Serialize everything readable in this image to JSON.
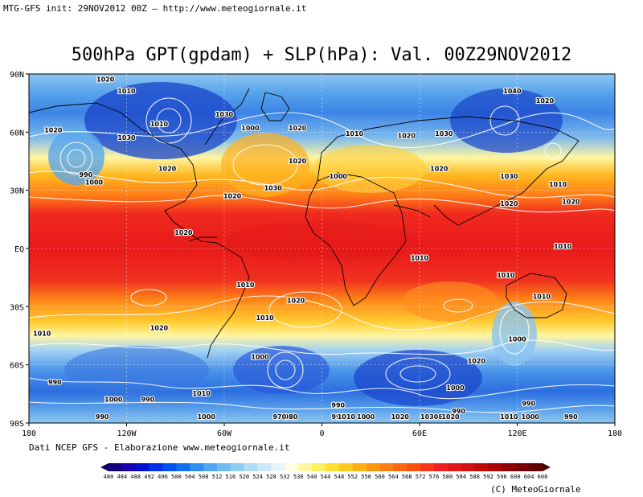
{
  "header": {
    "init_line": "MTG-GFS init: 29NOV2012 00Z — http://www.meteogiornale.it"
  },
  "title": "500hPa GPT(gpdam) + SLP(hPa): Val. 00Z29NOV2012",
  "map": {
    "lat_labels": [
      "90N",
      "60N",
      "30N",
      "EQ",
      "30S",
      "60S",
      "90S"
    ],
    "lon_labels": [
      "180",
      "120W",
      "60W",
      "0",
      "60E",
      "120E",
      "180"
    ],
    "pressure_labels": [
      {
        "t": "1020",
        "lon": -133,
        "lat": 86
      },
      {
        "t": "1010",
        "lon": -120,
        "lat": 80
      },
      {
        "t": "1020",
        "lon": -165,
        "lat": 60
      },
      {
        "t": "1030",
        "lon": -60,
        "lat": 68
      },
      {
        "t": "1010",
        "lon": -100,
        "lat": 63
      },
      {
        "t": "1000",
        "lon": -44,
        "lat": 61
      },
      {
        "t": "1020",
        "lon": -15,
        "lat": 61
      },
      {
        "t": "1030",
        "lon": -120,
        "lat": 56
      },
      {
        "t": "1020",
        "lon": -95,
        "lat": 40
      },
      {
        "t": "1020",
        "lon": -15,
        "lat": 44
      },
      {
        "t": "990",
        "lon": -145,
        "lat": 37
      },
      {
        "t": "1000",
        "lon": -140,
        "lat": 33
      },
      {
        "t": "1030",
        "lon": -30,
        "lat": 30
      },
      {
        "t": "1020",
        "lon": -55,
        "lat": 26
      },
      {
        "t": "1000",
        "lon": 10,
        "lat": 36
      },
      {
        "t": "1020",
        "lon": -85,
        "lat": 7
      },
      {
        "t": "1010",
        "lon": 20,
        "lat": 58
      },
      {
        "t": "1020",
        "lon": 52,
        "lat": 57
      },
      {
        "t": "1030",
        "lon": 75,
        "lat": 58
      },
      {
        "t": "1020",
        "lon": 72,
        "lat": 40
      },
      {
        "t": "1040",
        "lon": 117,
        "lat": 80
      },
      {
        "t": "1020",
        "lon": 137,
        "lat": 75
      },
      {
        "t": "1030",
        "lon": 115,
        "lat": 36
      },
      {
        "t": "1010",
        "lon": 145,
        "lat": 32
      },
      {
        "t": "1020",
        "lon": 115,
        "lat": 22
      },
      {
        "t": "1020",
        "lon": 153,
        "lat": 23
      },
      {
        "t": "1010",
        "lon": 60,
        "lat": -6
      },
      {
        "t": "1010",
        "lon": 148,
        "lat": 0
      },
      {
        "t": "1010",
        "lon": -47,
        "lat": -20
      },
      {
        "t": "1010",
        "lon": 113,
        "lat": -15
      },
      {
        "t": "1010",
        "lon": 135,
        "lat": -26
      },
      {
        "t": "1020",
        "lon": -16,
        "lat": -28
      },
      {
        "t": "1020",
        "lon": -100,
        "lat": -42
      },
      {
        "t": "1010",
        "lon": -35,
        "lat": -37
      },
      {
        "t": "1010",
        "lon": -172,
        "lat": -45
      },
      {
        "t": "1000",
        "lon": 120,
        "lat": -48
      },
      {
        "t": "1000",
        "lon": -38,
        "lat": -57
      },
      {
        "t": "1020",
        "lon": 95,
        "lat": -59
      },
      {
        "t": "1000",
        "lon": 82,
        "lat": -73
      },
      {
        "t": "990",
        "lon": -164,
        "lat": -70
      },
      {
        "t": "1000",
        "lon": -128,
        "lat": -79
      },
      {
        "t": "990",
        "lon": -107,
        "lat": -79
      },
      {
        "t": "1010",
        "lon": -74,
        "lat": -76
      },
      {
        "t": "990",
        "lon": 10,
        "lat": -82
      },
      {
        "t": "980",
        "lon": -19,
        "lat": -92
      },
      {
        "t": "970",
        "lon": -26,
        "lat": -88
      },
      {
        "t": "990",
        "lon": 84,
        "lat": -85
      },
      {
        "t": "980",
        "lon": 73,
        "lat": -94
      },
      {
        "t": "990",
        "lon": 127,
        "lat": -81
      },
      {
        "t": "990",
        "lon": 153,
        "lat": -90
      },
      {
        "t": "1000",
        "lon": 128,
        "lat": -92
      },
      {
        "t": "1010",
        "lon": 115,
        "lat": -95
      },
      {
        "t": "990",
        "lon": -135,
        "lat": -104
      },
      {
        "t": "990",
        "lon": 10,
        "lat": -96
      },
      {
        "t": "1010",
        "lon": 15,
        "lat": -100
      },
      {
        "t": "1000",
        "lon": 27,
        "lat": -99
      },
      {
        "t": "1020",
        "lon": 48,
        "lat": -99
      },
      {
        "t": "1030",
        "lon": 66,
        "lat": -110
      },
      {
        "t": "1020",
        "lon": 79,
        "lat": -112
      },
      {
        "t": "1000",
        "lon": -71,
        "lat": -116
      }
    ]
  },
  "colorbar": {
    "labels": [
      "480",
      "484",
      "488",
      "492",
      "496",
      "500",
      "504",
      "508",
      "512",
      "516",
      "520",
      "524",
      "528",
      "532",
      "536",
      "540",
      "544",
      "548",
      "552",
      "556",
      "560",
      "564",
      "568",
      "572",
      "576",
      "580",
      "584",
      "588",
      "592",
      "596",
      "600",
      "604",
      "608"
    ],
    "colors": [
      "#120080",
      "#1a00b0",
      "#0010d0",
      "#0030e8",
      "#0050f0",
      "#1070f0",
      "#3090f0",
      "#50a8f0",
      "#70bcf0",
      "#90cef0",
      "#b0dcf4",
      "#cce8f8",
      "#e6f4fc",
      "#fefee0",
      "#fff6a0",
      "#fff060",
      "#ffe030",
      "#ffc820",
      "#ffb010",
      "#ff9810",
      "#ff8010",
      "#ff6810",
      "#ff5010",
      "#f83818",
      "#f02020",
      "#e01818",
      "#d01010",
      "#c00808",
      "#a80404",
      "#900000",
      "#780000",
      "#600000"
    ],
    "label_unit": ""
  },
  "footer": {
    "credit": "Dati NCEP GFS - Elaborazione www.meteogiornale.it",
    "copyright": "(C) MeteoGiornale"
  }
}
